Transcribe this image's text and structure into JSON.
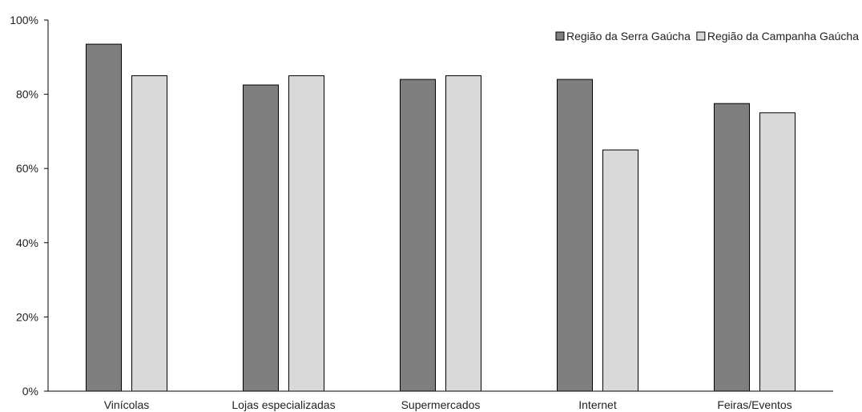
{
  "chart_data": {
    "type": "bar",
    "categories": [
      "Vinícolas",
      "Lojas especializadas",
      "Supermercados",
      "Internet",
      "Feiras/Eventos"
    ],
    "series": [
      {
        "name": "Região da Serra Gaúcha",
        "values": [
          93.5,
          82.5,
          84,
          84,
          77.5
        ],
        "color": "#7f7f7f"
      },
      {
        "name": "Região da Campanha Gaúcha",
        "values": [
          85,
          85,
          85,
          65,
          75
        ],
        "color": "#d9d9d9"
      }
    ],
    "ylim": [
      0,
      100
    ],
    "yticks": [
      "0%",
      "20%",
      "40%",
      "60%",
      "80%",
      "100%"
    ],
    "ytick_values": [
      0,
      20,
      40,
      60,
      80,
      100
    ],
    "xlabel": "",
    "ylabel": "",
    "grid": false,
    "legend_position": "top-right"
  }
}
